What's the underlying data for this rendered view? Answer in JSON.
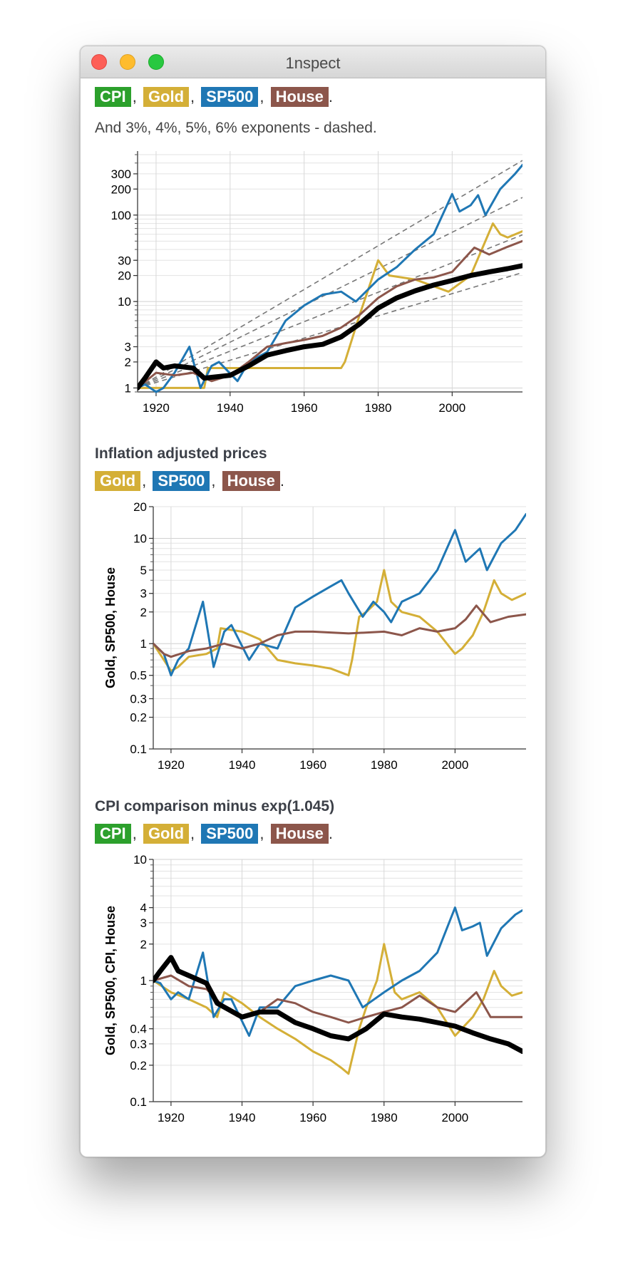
{
  "window": {
    "title": "1nspect"
  },
  "colors": {
    "CPI": "#2ca02c",
    "Gold": "#d4af37",
    "SP500": "#1f77b4",
    "House": "#8c564b",
    "close": "#fd5f57",
    "minimize": "#febc2e",
    "maximize": "#28c840"
  },
  "top": {
    "legend": [
      "CPI",
      "Gold",
      "SP500",
      "House"
    ],
    "note": "And 3%, 4%, 5%, 6% exponents - dashed."
  },
  "section2": {
    "title": "Inflation adjusted prices",
    "legend": [
      "Gold",
      "SP500",
      "House"
    ]
  },
  "section3": {
    "title": "CPI comparison minus exp(1.045)",
    "legend": [
      "CPI",
      "Gold",
      "SP500",
      "House"
    ]
  },
  "chart_data": [
    {
      "type": "line",
      "yscale": "log",
      "xlim": [
        1915,
        2019
      ],
      "ylim": [
        0.9,
        550
      ],
      "xticks": [
        1920,
        1940,
        1960,
        1980,
        2000
      ],
      "yticks": [
        1,
        2,
        3,
        10,
        20,
        30,
        100,
        200,
        300
      ],
      "ylabel": "",
      "grid": true,
      "dashed_exponents": [
        1.03,
        1.04,
        1.05,
        1.06
      ],
      "series": [
        {
          "name": "CPI",
          "x": [
            1915,
            1917,
            1920,
            1922,
            1925,
            1930,
            1933,
            1940,
            1945,
            1950,
            1955,
            1960,
            1965,
            1970,
            1975,
            1980,
            1985,
            1990,
            1995,
            2000,
            2005,
            2010,
            2015,
            2019
          ],
          "y": [
            1,
            1.3,
            2,
            1.7,
            1.8,
            1.7,
            1.3,
            1.4,
            1.8,
            2.4,
            2.7,
            3,
            3.2,
            3.9,
            5.5,
            8.4,
            11,
            13.3,
            15.5,
            17.5,
            20,
            22,
            24,
            26
          ]
        },
        {
          "name": "Gold",
          "x": [
            1915,
            1933,
            1934,
            1945,
            1970,
            1971,
            1975,
            1980,
            1983,
            1990,
            1999,
            2005,
            2008,
            2011,
            2013,
            2015,
            2019
          ],
          "y": [
            1,
            1,
            1.7,
            1.7,
            1.7,
            2,
            7,
            30,
            20,
            18,
            13,
            20,
            40,
            80,
            60,
            55,
            65
          ]
        },
        {
          "name": "SP500",
          "x": [
            1915,
            1917,
            1920,
            1922,
            1925,
            1929,
            1932,
            1935,
            1937,
            1942,
            1945,
            1950,
            1955,
            1960,
            1965,
            1970,
            1974,
            1980,
            1985,
            1990,
            1995,
            2000,
            2002,
            2005,
            2007,
            2009,
            2013,
            2017,
            2019
          ],
          "y": [
            1,
            1.1,
            0.9,
            1,
            1.5,
            3,
            1,
            1.8,
            2,
            1.2,
            2,
            2.6,
            6,
            9,
            12,
            13,
            10,
            18,
            25,
            40,
            60,
            175,
            110,
            130,
            170,
            100,
            200,
            300,
            380
          ]
        },
        {
          "name": "House",
          "x": [
            1915,
            1920,
            1925,
            1930,
            1935,
            1940,
            1945,
            1950,
            1955,
            1960,
            1965,
            1970,
            1975,
            1980,
            1985,
            1990,
            1995,
            2000,
            2006,
            2010,
            2015,
            2019
          ],
          "y": [
            1,
            1.5,
            1.4,
            1.5,
            1.2,
            1.4,
            2,
            3,
            3.3,
            3.6,
            4,
            5,
            7,
            11,
            15,
            18,
            19,
            22,
            42,
            35,
            43,
            50
          ]
        }
      ]
    },
    {
      "type": "line",
      "yscale": "log",
      "xlim": [
        1915,
        2020
      ],
      "ylim": [
        0.1,
        20
      ],
      "xticks": [
        1920,
        1940,
        1960,
        1980,
        2000
      ],
      "yticks": [
        0.1,
        0.2,
        0.3,
        0.5,
        1,
        2,
        3,
        5,
        10,
        20
      ],
      "ylabel": "Gold, SP500, House",
      "grid": true,
      "series": [
        {
          "name": "Gold",
          "x": [
            1915,
            1918,
            1920,
            1922,
            1925,
            1930,
            1933,
            1934,
            1940,
            1945,
            1950,
            1955,
            1960,
            1965,
            1970,
            1971,
            1973,
            1975,
            1978,
            1980,
            1982,
            1985,
            1990,
            1995,
            2000,
            2002,
            2005,
            2008,
            2011,
            2013,
            2016,
            2020
          ],
          "y": [
            1,
            0.7,
            0.55,
            0.6,
            0.75,
            0.8,
            0.9,
            1.4,
            1.3,
            1.1,
            0.7,
            0.65,
            0.62,
            0.58,
            0.5,
            0.7,
            1.8,
            2,
            2.5,
            5,
            2.5,
            2,
            1.8,
            1.3,
            0.8,
            0.9,
            1.2,
            2,
            4,
            3,
            2.6,
            3
          ]
        },
        {
          "name": "SP500",
          "x": [
            1915,
            1918,
            1920,
            1922,
            1925,
            1929,
            1932,
            1935,
            1937,
            1942,
            1945,
            1950,
            1955,
            1960,
            1965,
            1968,
            1970,
            1974,
            1977,
            1980,
            1982,
            1985,
            1990,
            1995,
            2000,
            2003,
            2007,
            2009,
            2013,
            2017,
            2020
          ],
          "y": [
            1,
            0.8,
            0.5,
            0.7,
            0.9,
            2.5,
            0.6,
            1.3,
            1.5,
            0.7,
            1,
            0.9,
            2.2,
            2.8,
            3.5,
            4,
            3,
            1.8,
            2.5,
            2,
            1.6,
            2.5,
            3,
            5,
            12,
            6,
            8,
            5,
            9,
            12,
            17
          ]
        },
        {
          "name": "House",
          "x": [
            1915,
            1918,
            1920,
            1925,
            1930,
            1935,
            1940,
            1945,
            1950,
            1955,
            1960,
            1970,
            1980,
            1985,
            1990,
            1995,
            2000,
            2003,
            2006,
            2010,
            2015,
            2020
          ],
          "y": [
            1,
            0.8,
            0.75,
            0.85,
            0.9,
            1,
            0.9,
            1,
            1.2,
            1.3,
            1.3,
            1.25,
            1.3,
            1.2,
            1.4,
            1.3,
            1.4,
            1.7,
            2.3,
            1.6,
            1.8,
            1.9
          ]
        }
      ]
    },
    {
      "type": "line",
      "yscale": "log",
      "xlim": [
        1915,
        2019
      ],
      "ylim": [
        0.1,
        10
      ],
      "xticks": [
        1920,
        1940,
        1960,
        1980,
        2000
      ],
      "yticks": [
        0.1,
        0.2,
        0.3,
        0.4,
        1,
        2,
        3,
        4,
        10
      ],
      "ylabel": "Gold, SP500, CPI, House",
      "grid": true,
      "series": [
        {
          "name": "CPI",
          "x": [
            1915,
            1917,
            1920,
            1922,
            1925,
            1930,
            1933,
            1940,
            1945,
            1950,
            1955,
            1960,
            1965,
            1970,
            1975,
            1980,
            1985,
            1990,
            1995,
            2000,
            2005,
            2010,
            2015,
            2019
          ],
          "y": [
            1,
            1.2,
            1.55,
            1.2,
            1.1,
            0.95,
            0.65,
            0.5,
            0.55,
            0.55,
            0.45,
            0.4,
            0.35,
            0.33,
            0.4,
            0.53,
            0.5,
            0.48,
            0.45,
            0.42,
            0.37,
            0.33,
            0.3,
            0.26
          ]
        },
        {
          "name": "Gold",
          "x": [
            1915,
            1920,
            1925,
            1930,
            1933,
            1935,
            1940,
            1945,
            1950,
            1955,
            1960,
            1965,
            1968,
            1970,
            1973,
            1975,
            1978,
            1980,
            1983,
            1985,
            1990,
            1995,
            2000,
            2005,
            2008,
            2011,
            2013,
            2016,
            2019
          ],
          "y": [
            1,
            0.8,
            0.7,
            0.6,
            0.5,
            0.8,
            0.65,
            0.5,
            0.4,
            0.33,
            0.26,
            0.22,
            0.19,
            0.17,
            0.4,
            0.6,
            1,
            2,
            0.8,
            0.7,
            0.8,
            0.6,
            0.35,
            0.5,
            0.7,
            1.2,
            0.9,
            0.75,
            0.8
          ]
        },
        {
          "name": "SP500",
          "x": [
            1915,
            1917,
            1920,
            1922,
            1925,
            1929,
            1932,
            1935,
            1937,
            1942,
            1945,
            1950,
            1955,
            1960,
            1965,
            1970,
            1974,
            1980,
            1985,
            1990,
            1995,
            2000,
            2002,
            2005,
            2007,
            2009,
            2013,
            2017,
            2019
          ],
          "y": [
            1,
            0.95,
            0.7,
            0.8,
            0.7,
            1.7,
            0.5,
            0.7,
            0.7,
            0.35,
            0.6,
            0.6,
            0.9,
            1,
            1.1,
            1,
            0.6,
            0.8,
            1,
            1.2,
            1.7,
            4,
            2.6,
            2.8,
            3,
            1.6,
            2.7,
            3.5,
            3.8
          ]
        },
        {
          "name": "House",
          "x": [
            1915,
            1920,
            1925,
            1930,
            1935,
            1940,
            1945,
            1950,
            1955,
            1960,
            1965,
            1970,
            1975,
            1980,
            1985,
            1990,
            1995,
            2000,
            2006,
            2010,
            2015,
            2019
          ],
          "y": [
            1,
            1.1,
            0.9,
            0.85,
            0.6,
            0.5,
            0.55,
            0.7,
            0.65,
            0.55,
            0.5,
            0.45,
            0.5,
            0.55,
            0.6,
            0.75,
            0.6,
            0.55,
            0.8,
            0.5,
            0.5,
            0.5
          ]
        }
      ]
    }
  ]
}
